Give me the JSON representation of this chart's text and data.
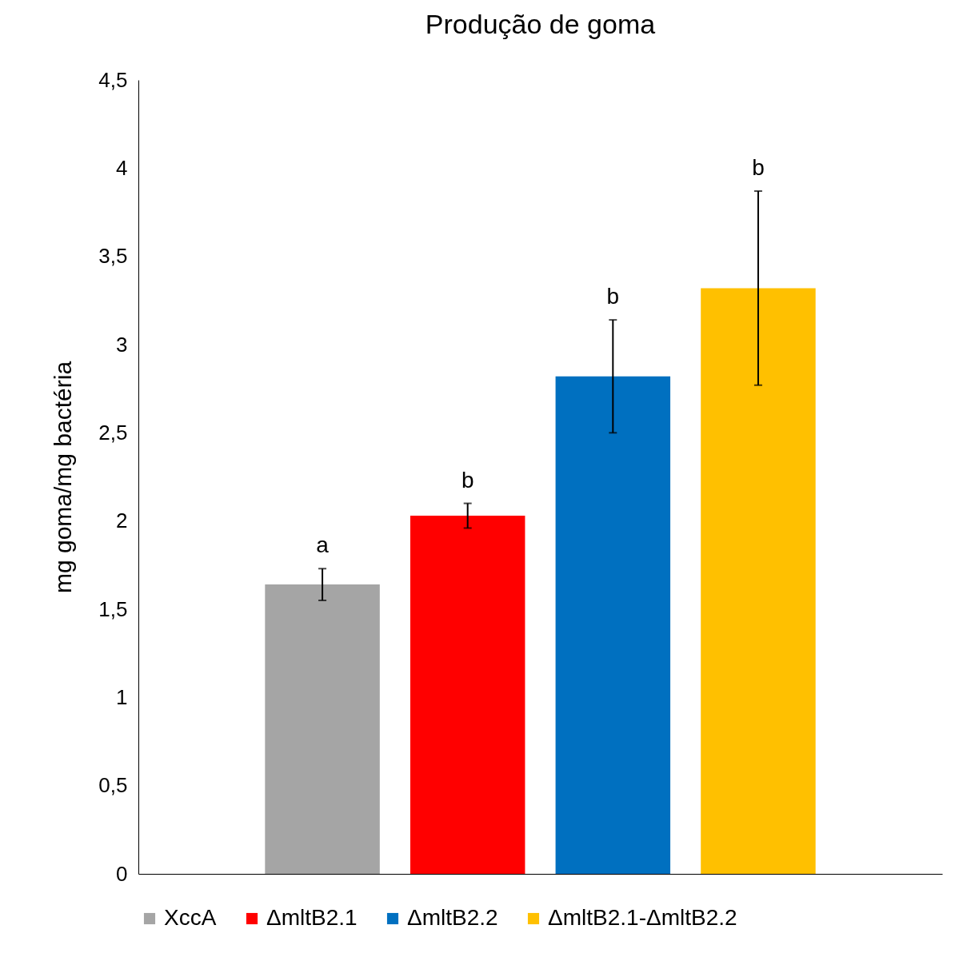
{
  "chart_data": {
    "type": "bar",
    "title": "Produção de goma",
    "ylabel": "mg goma/mg bactéria",
    "categories": [
      null
    ],
    "series": [
      {
        "name": "XccA",
        "color": "#a5a5a5",
        "values": [
          1.64
        ],
        "errors": [
          0.09
        ]
      },
      {
        "name": "ΔmltB2.1",
        "color": "#ff0000",
        "values": [
          2.03
        ],
        "errors": [
          0.07
        ]
      },
      {
        "name": "ΔmltB2.2",
        "color": "#0070c0",
        "values": [
          2.82
        ],
        "errors": [
          0.32
        ]
      },
      {
        "name": "ΔmltB2.1-ΔmltB2.2",
        "color": "#ffc000",
        "values": [
          3.32
        ],
        "errors": [
          0.55
        ]
      }
    ],
    "ylim": [
      0,
      4.5
    ],
    "yticks": [
      0,
      {
        "value": 0.5,
        "label": "0,5"
      },
      1,
      {
        "value": 1.5,
        "label": "1,5"
      },
      2,
      {
        "value": 2.5,
        "label": "2,5"
      },
      3,
      {
        "value": 3.5,
        "label": "3,5"
      },
      4,
      {
        "value": 4.5,
        "label": "4,5"
      }
    ],
    "annotations": [
      "a",
      "b",
      "b",
      "b"
    ],
    "grid": false,
    "legend": "bottom"
  }
}
